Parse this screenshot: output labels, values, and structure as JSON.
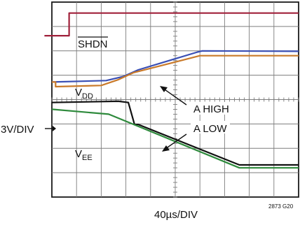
{
  "chart_data": {
    "type": "line",
    "title": "",
    "xlabel": "40µs/DIV",
    "ylabel": "3V/DIV",
    "figure_id": "2873 G20",
    "x_divisions": 10,
    "y_divisions": 8,
    "xlim": [
      0,
      10
    ],
    "ylim": [
      0,
      8
    ],
    "grid": true,
    "series": [
      {
        "name": "SHDN",
        "color": "#a0203a",
        "points": [
          [
            -0.3,
            6.62
          ],
          [
            0.7,
            6.62
          ],
          [
            0.7,
            7.55
          ],
          [
            10,
            7.55
          ]
        ]
      },
      {
        "name": "VDD",
        "color": "#3a4fb4",
        "points": [
          [
            0,
            4.72
          ],
          [
            2.2,
            4.78
          ],
          [
            2.9,
            4.95
          ],
          [
            3.5,
            5.22
          ],
          [
            5.9,
            5.95
          ],
          [
            6.1,
            6.0
          ],
          [
            10,
            5.98
          ]
        ]
      },
      {
        "name": "",
        "color": "#c97a2a",
        "points": [
          [
            0,
            4.72
          ],
          [
            0.15,
            4.72
          ],
          [
            0.15,
            4.53
          ],
          [
            2.0,
            4.58
          ],
          [
            2.7,
            4.82
          ],
          [
            3.3,
            5.1
          ],
          [
            6.0,
            5.8
          ],
          [
            10,
            5.8
          ]
        ]
      },
      {
        "name": "",
        "color": "#111111",
        "points": [
          [
            0,
            3.88
          ],
          [
            2.7,
            3.93
          ],
          [
            3.1,
            3.88
          ],
          [
            3.35,
            2.98
          ],
          [
            3.5,
            2.98
          ],
          [
            7.6,
            1.32
          ],
          [
            10,
            1.32
          ]
        ]
      },
      {
        "name": "VEE",
        "color": "#2e8a3c",
        "points": [
          [
            0,
            3.6
          ],
          [
            2.3,
            3.4
          ],
          [
            7.6,
            1.2
          ],
          [
            10,
            1.2
          ]
        ]
      }
    ],
    "annotations": [
      {
        "label": "SHDN",
        "overline": true
      },
      {
        "label": "VDD",
        "main": "V",
        "sub": "DD"
      },
      {
        "label": "VEE",
        "main": "V",
        "sub": "EE"
      },
      {
        "label": "A HIGH"
      },
      {
        "label": "A LOW"
      }
    ]
  }
}
